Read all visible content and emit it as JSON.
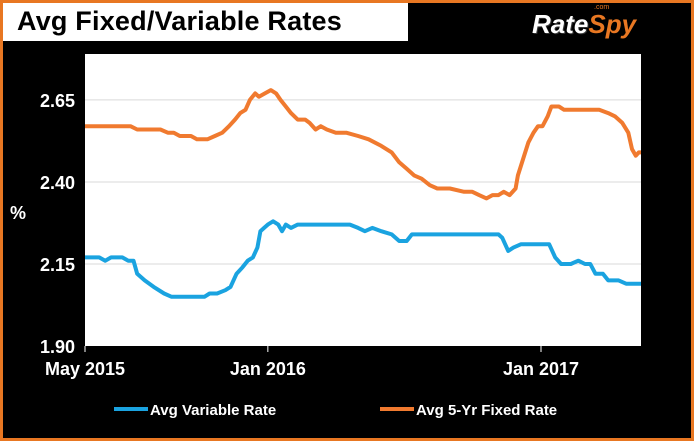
{
  "header": {
    "title": "Avg Fixed/Variable Rates",
    "logo_text_1": "Rate",
    "logo_text_2": "Spy",
    "logo_sub": ".com"
  },
  "colors": {
    "accent": "#e87722",
    "variable": "#1aa3e0",
    "fixed": "#f07a2f",
    "background": "#000000",
    "plot_background": "#ffffff"
  },
  "chart_data": {
    "type": "line",
    "title": "Avg Fixed/Variable Rates",
    "ylabel": "%",
    "xlabel": "",
    "ylim": [
      1.9,
      2.79
    ],
    "yticks": [
      "2.65",
      "2.40",
      "2.15",
      "1.90"
    ],
    "ytick_values": [
      2.65,
      2.4,
      2.15,
      1.9
    ],
    "xticks": [
      "May 2015",
      "Jan 2016",
      "Jan 2017"
    ],
    "xtick_values": [
      "2015-05-01",
      "2016-01-01",
      "2017-01-01"
    ],
    "xlim": [
      "2015-05-01",
      "2017-05-15"
    ],
    "grid": "horizontal",
    "legend_position": "bottom",
    "series": [
      {
        "name": "Avg Variable Rate",
        "color": "#1aa3e0",
        "points": [
          [
            "2015-05-01",
            2.17
          ],
          [
            "2015-05-20",
            2.17
          ],
          [
            "2015-05-28",
            2.16
          ],
          [
            "2015-06-05",
            2.17
          ],
          [
            "2015-06-20",
            2.17
          ],
          [
            "2015-06-28",
            2.16
          ],
          [
            "2015-07-05",
            2.16
          ],
          [
            "2015-07-10",
            2.12
          ],
          [
            "2015-07-20",
            2.1
          ],
          [
            "2015-08-01",
            2.08
          ],
          [
            "2015-08-15",
            2.06
          ],
          [
            "2015-08-25",
            2.05
          ],
          [
            "2015-09-10",
            2.05
          ],
          [
            "2015-09-25",
            2.05
          ],
          [
            "2015-10-08",
            2.05
          ],
          [
            "2015-10-15",
            2.06
          ],
          [
            "2015-10-25",
            2.06
          ],
          [
            "2015-11-05",
            2.07
          ],
          [
            "2015-11-12",
            2.08
          ],
          [
            "2015-11-20",
            2.12
          ],
          [
            "2015-11-28",
            2.14
          ],
          [
            "2015-12-05",
            2.16
          ],
          [
            "2015-12-12",
            2.17
          ],
          [
            "2015-12-18",
            2.2
          ],
          [
            "2015-12-22",
            2.25
          ],
          [
            "2015-12-27",
            2.26
          ],
          [
            "2016-01-01",
            2.27
          ],
          [
            "2016-01-08",
            2.28
          ],
          [
            "2016-01-15",
            2.27
          ],
          [
            "2016-01-20",
            2.25
          ],
          [
            "2016-01-25",
            2.27
          ],
          [
            "2016-02-01",
            2.26
          ],
          [
            "2016-02-10",
            2.27
          ],
          [
            "2016-03-01",
            2.27
          ],
          [
            "2016-04-01",
            2.27
          ],
          [
            "2016-04-20",
            2.27
          ],
          [
            "2016-05-01",
            2.26
          ],
          [
            "2016-05-10",
            2.25
          ],
          [
            "2016-05-20",
            2.26
          ],
          [
            "2016-06-01",
            2.25
          ],
          [
            "2016-06-15",
            2.24
          ],
          [
            "2016-06-25",
            2.22
          ],
          [
            "2016-07-05",
            2.22
          ],
          [
            "2016-07-12",
            2.24
          ],
          [
            "2016-08-01",
            2.24
          ],
          [
            "2016-09-01",
            2.24
          ],
          [
            "2016-10-01",
            2.24
          ],
          [
            "2016-10-25",
            2.24
          ],
          [
            "2016-11-05",
            2.24
          ],
          [
            "2016-11-10",
            2.23
          ],
          [
            "2016-11-18",
            2.19
          ],
          [
            "2016-11-25",
            2.2
          ],
          [
            "2016-12-05",
            2.21
          ],
          [
            "2016-12-15",
            2.21
          ],
          [
            "2017-01-01",
            2.21
          ],
          [
            "2017-01-12",
            2.21
          ],
          [
            "2017-01-20",
            2.17
          ],
          [
            "2017-01-28",
            2.15
          ],
          [
            "2017-02-10",
            2.15
          ],
          [
            "2017-02-20",
            2.16
          ],
          [
            "2017-03-01",
            2.15
          ],
          [
            "2017-03-08",
            2.15
          ],
          [
            "2017-03-15",
            2.12
          ],
          [
            "2017-03-25",
            2.12
          ],
          [
            "2017-04-01",
            2.1
          ],
          [
            "2017-04-15",
            2.1
          ],
          [
            "2017-04-25",
            2.09
          ],
          [
            "2017-05-01",
            2.09
          ],
          [
            "2017-05-15",
            2.09
          ]
        ]
      },
      {
        "name": "Avg 5-Yr Fixed Rate",
        "color": "#f07a2f",
        "points": [
          [
            "2015-05-01",
            2.57
          ],
          [
            "2015-06-01",
            2.57
          ],
          [
            "2015-07-01",
            2.57
          ],
          [
            "2015-07-10",
            2.56
          ],
          [
            "2015-08-10",
            2.56
          ],
          [
            "2015-08-20",
            2.55
          ],
          [
            "2015-08-28",
            2.55
          ],
          [
            "2015-09-05",
            2.54
          ],
          [
            "2015-09-20",
            2.54
          ],
          [
            "2015-09-28",
            2.53
          ],
          [
            "2015-10-12",
            2.53
          ],
          [
            "2015-10-22",
            2.54
          ],
          [
            "2015-11-01",
            2.55
          ],
          [
            "2015-11-10",
            2.57
          ],
          [
            "2015-11-18",
            2.59
          ],
          [
            "2015-11-25",
            2.61
          ],
          [
            "2015-12-02",
            2.62
          ],
          [
            "2015-12-08",
            2.65
          ],
          [
            "2015-12-15",
            2.67
          ],
          [
            "2015-12-20",
            2.66
          ],
          [
            "2015-12-28",
            2.67
          ],
          [
            "2016-01-05",
            2.68
          ],
          [
            "2016-01-12",
            2.67
          ],
          [
            "2016-01-18",
            2.65
          ],
          [
            "2016-01-25",
            2.63
          ],
          [
            "2016-02-01",
            2.61
          ],
          [
            "2016-02-10",
            2.59
          ],
          [
            "2016-02-20",
            2.59
          ],
          [
            "2016-02-26",
            2.58
          ],
          [
            "2016-03-05",
            2.56
          ],
          [
            "2016-03-12",
            2.57
          ],
          [
            "2016-03-20",
            2.56
          ],
          [
            "2016-04-01",
            2.55
          ],
          [
            "2016-04-15",
            2.55
          ],
          [
            "2016-05-01",
            2.54
          ],
          [
            "2016-05-15",
            2.53
          ],
          [
            "2016-06-01",
            2.51
          ],
          [
            "2016-06-15",
            2.49
          ],
          [
            "2016-06-25",
            2.46
          ],
          [
            "2016-07-05",
            2.44
          ],
          [
            "2016-07-15",
            2.42
          ],
          [
            "2016-07-25",
            2.41
          ],
          [
            "2016-08-05",
            2.39
          ],
          [
            "2016-08-15",
            2.38
          ],
          [
            "2016-09-01",
            2.38
          ],
          [
            "2016-09-20",
            2.37
          ],
          [
            "2016-10-01",
            2.37
          ],
          [
            "2016-10-10",
            2.36
          ],
          [
            "2016-10-20",
            2.35
          ],
          [
            "2016-10-28",
            2.36
          ],
          [
            "2016-11-05",
            2.36
          ],
          [
            "2016-11-12",
            2.37
          ],
          [
            "2016-11-20",
            2.36
          ],
          [
            "2016-11-28",
            2.38
          ],
          [
            "2016-12-01",
            2.42
          ],
          [
            "2016-12-08",
            2.47
          ],
          [
            "2016-12-15",
            2.52
          ],
          [
            "2016-12-22",
            2.55
          ],
          [
            "2016-12-28",
            2.57
          ],
          [
            "2017-01-03",
            2.57
          ],
          [
            "2017-01-10",
            2.6
          ],
          [
            "2017-01-15",
            2.63
          ],
          [
            "2017-01-25",
            2.63
          ],
          [
            "2017-02-01",
            2.62
          ],
          [
            "2017-03-01",
            2.62
          ],
          [
            "2017-03-20",
            2.62
          ],
          [
            "2017-04-01",
            2.61
          ],
          [
            "2017-04-10",
            2.6
          ],
          [
            "2017-04-20",
            2.58
          ],
          [
            "2017-04-28",
            2.55
          ],
          [
            "2017-05-03",
            2.5
          ],
          [
            "2017-05-08",
            2.48
          ],
          [
            "2017-05-12",
            2.49
          ],
          [
            "2017-05-15",
            2.49
          ]
        ]
      }
    ]
  }
}
